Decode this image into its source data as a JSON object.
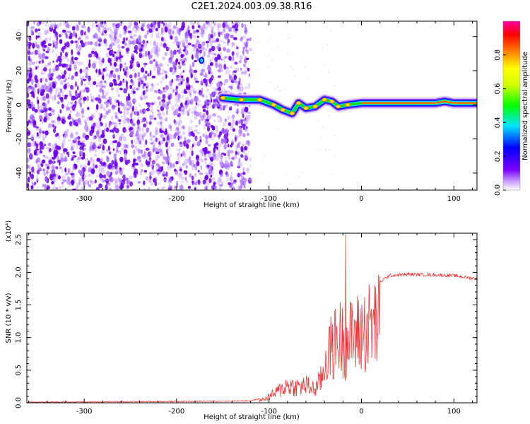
{
  "title": "C2E1.2024.003.09.38.R16",
  "chart_data": [
    {
      "type": "heatmap",
      "xlabel": "Height of straight line (km)",
      "ylabel": "Frequency (Hz)",
      "xlim": [
        -362,
        125
      ],
      "ylim": [
        -50,
        49
      ],
      "xticks": [
        -300,
        -200,
        -100,
        0,
        100
      ],
      "yticks": [
        -40,
        -20,
        0,
        20,
        40
      ],
      "colorbar": {
        "label": "Normalized spectral amplitude",
        "range": [
          0.0,
          1.0
        ],
        "ticks": [
          "0.0",
          "0.2",
          "0.4",
          "0.6",
          "0.8"
        ],
        "colormap": [
          "#ffffff",
          "#7a00ff",
          "#0000ff",
          "#00e5ff",
          "#00ff00",
          "#ffff00",
          "#ff8000",
          "#ff0000",
          "#ff00a0"
        ]
      },
      "features": {
        "noise_region_x": [
          -362,
          -120
        ],
        "ridge": [
          {
            "x": -150,
            "y": 4
          },
          {
            "x": -130,
            "y": 3
          },
          {
            "x": -110,
            "y": 3
          },
          {
            "x": -95,
            "y": 0
          },
          {
            "x": -85,
            "y": -3
          },
          {
            "x": -75,
            "y": -5
          },
          {
            "x": -68,
            "y": 1
          },
          {
            "x": -60,
            "y": -2
          },
          {
            "x": -50,
            "y": -1
          },
          {
            "x": -40,
            "y": 3
          },
          {
            "x": -32,
            "y": 2
          },
          {
            "x": -25,
            "y": -1
          },
          {
            "x": -15,
            "y": 0
          },
          {
            "x": 0,
            "y": 1
          },
          {
            "x": 20,
            "y": 1
          },
          {
            "x": 50,
            "y": 1
          },
          {
            "x": 80,
            "y": 1
          },
          {
            "x": 90,
            "y": 2
          },
          {
            "x": 100,
            "y": 1
          },
          {
            "x": 125,
            "y": 1
          }
        ],
        "highlight_point": {
          "x": -173,
          "y": 26
        }
      }
    },
    {
      "type": "line",
      "xlabel": "Height of straight line (km)",
      "ylabel": "SNR (10 * v/v)",
      "y_multiplier": "(x10⁴)",
      "xlim": [
        -362,
        125
      ],
      "ylim": [
        0,
        2.6
      ],
      "xticks": [
        -300,
        -200,
        -100,
        0,
        100
      ],
      "yticks": [
        "0.0",
        "0.5",
        "1.0",
        "1.5",
        "2.0",
        "2.5"
      ],
      "color": "#ee3333",
      "envelope": [
        {
          "x": -362,
          "y": 0.01
        },
        {
          "x": -200,
          "y": 0.02
        },
        {
          "x": -120,
          "y": 0.03
        },
        {
          "x": -105,
          "y": 0.08
        },
        {
          "x": -95,
          "y": 0.2
        },
        {
          "x": -80,
          "y": 0.4
        },
        {
          "x": -70,
          "y": 0.35
        },
        {
          "x": -60,
          "y": 0.4
        },
        {
          "x": -50,
          "y": 0.3
        },
        {
          "x": -42,
          "y": 0.6
        },
        {
          "x": -38,
          "y": 1.1
        },
        {
          "x": -30,
          "y": 1.3
        },
        {
          "x": -25,
          "y": 1.5
        },
        {
          "x": -17,
          "y": 1.35
        },
        {
          "x": -10,
          "y": 1.5
        },
        {
          "x": 0,
          "y": 1.6
        },
        {
          "x": 10,
          "y": 1.75
        },
        {
          "x": 20,
          "y": 1.85
        },
        {
          "x": 30,
          "y": 1.95
        },
        {
          "x": 50,
          "y": 1.97
        },
        {
          "x": 80,
          "y": 1.96
        },
        {
          "x": 100,
          "y": 1.95
        },
        {
          "x": 125,
          "y": 1.9
        }
      ],
      "spike": {
        "x": -17,
        "y": 2.6
      }
    }
  ]
}
